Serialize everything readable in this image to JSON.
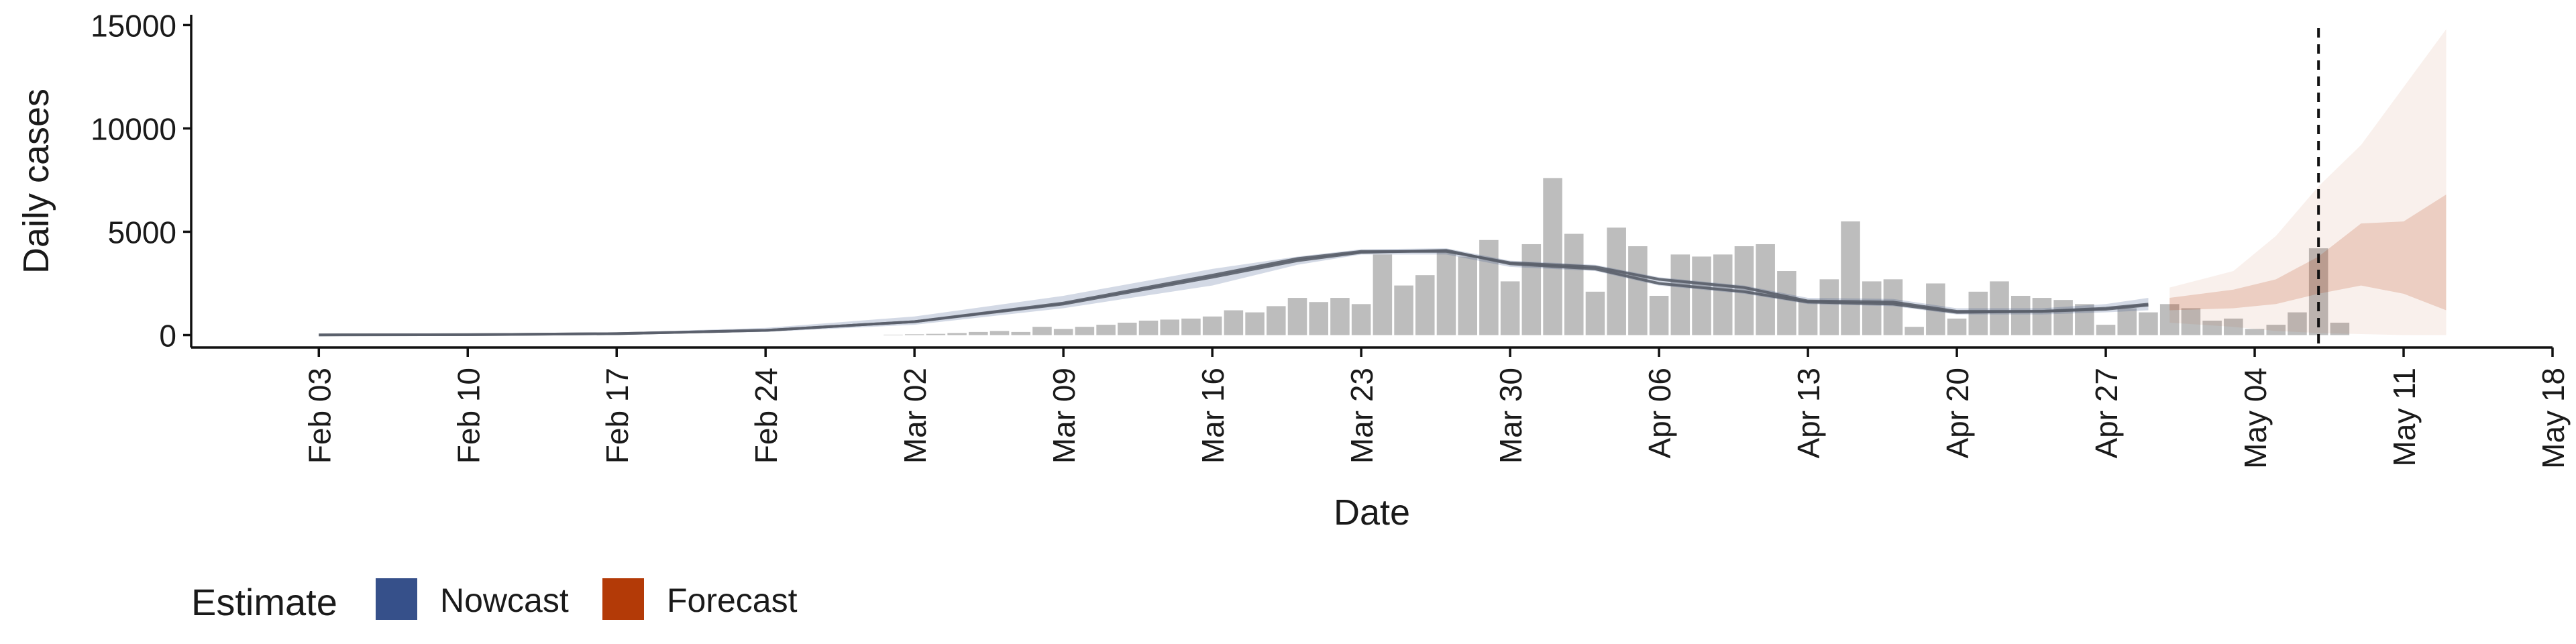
{
  "chart_data": {
    "type": "bar",
    "ylabel": "Daily cases",
    "xlabel": "Date",
    "ylim": [
      -600,
      15500
    ],
    "y_ticks": [
      0,
      5000,
      10000,
      15000
    ],
    "y_tick_labels": [
      "0",
      "5000",
      "10000",
      "15000"
    ],
    "x_range": [
      "2020-01-28",
      "2020-05-18"
    ],
    "x_ticks": [
      "2020-02-03",
      "2020-02-10",
      "2020-02-17",
      "2020-02-24",
      "2020-03-02",
      "2020-03-09",
      "2020-03-16",
      "2020-03-23",
      "2020-03-30",
      "2020-04-06",
      "2020-04-13",
      "2020-04-20",
      "2020-04-27",
      "2020-05-04",
      "2020-05-11",
      "2020-05-18"
    ],
    "x_tick_labels": [
      "Feb 03",
      "Feb 10",
      "Feb 17",
      "Feb 24",
      "Mar 02",
      "Mar 09",
      "Mar 16",
      "Mar 23",
      "Mar 30",
      "Apr 06",
      "Apr 13",
      "Apr 20",
      "Apr 27",
      "May 04",
      "May 11",
      "May 18"
    ],
    "vline_date": "2020-05-07",
    "bar_color": "#bdbdbd",
    "bars": {
      "start_date": "2020-02-29",
      "values": [
        0,
        20,
        40,
        60,
        100,
        150,
        200,
        150,
        400,
        300,
        400,
        500,
        600,
        700,
        750,
        800,
        900,
        1200,
        1100,
        1400,
        1800,
        1600,
        1800,
        1500,
        3900,
        2400,
        2900,
        4000,
        3800,
        4600,
        2600,
        4400,
        7600,
        4900,
        2100,
        5200,
        4300,
        1900,
        3900,
        3800,
        3900,
        4300,
        4400,
        3100,
        1700,
        2700,
        5500,
        2600,
        2700,
        400,
        2500,
        800,
        2100,
        2600,
        1900,
        1800,
        1700,
        1500,
        500,
        1300,
        1100,
        1500,
        1300,
        700,
        800,
        300,
        500,
        1100,
        4200,
        600
      ]
    },
    "legend": {
      "title": "Estimate",
      "position": "bottom-left",
      "items": [
        {
          "label": "Nowcast",
          "color": "#36508a"
        },
        {
          "label": "Forecast",
          "color": "#b33a07"
        }
      ]
    },
    "nowcast": {
      "color": "#36508a",
      "line_color": "#5a5f6a",
      "points": [
        {
          "x": "2020-02-03",
          "lo": 0,
          "hi": 20,
          "m1": 10,
          "m2": 10
        },
        {
          "x": "2020-02-10",
          "lo": 10,
          "hi": 40,
          "m1": 20,
          "m2": 20
        },
        {
          "x": "2020-02-17",
          "lo": 40,
          "hi": 120,
          "m1": 70,
          "m2": 70
        },
        {
          "x": "2020-02-24",
          "lo": 150,
          "hi": 350,
          "m1": 230,
          "m2": 230
        },
        {
          "x": "2020-03-02",
          "lo": 500,
          "hi": 900,
          "m1": 650,
          "m2": 650
        },
        {
          "x": "2020-03-09",
          "lo": 1300,
          "hi": 1900,
          "m1": 1500,
          "m2": 1550
        },
        {
          "x": "2020-03-16",
          "lo": 2400,
          "hi": 3200,
          "m1": 2800,
          "m2": 2900
        },
        {
          "x": "2020-03-20",
          "lo": 3400,
          "hi": 3800,
          "m1": 3600,
          "m2": 3700
        },
        {
          "x": "2020-03-23",
          "lo": 3900,
          "hi": 4150,
          "m1": 4000,
          "m2": 4050
        },
        {
          "x": "2020-03-27",
          "lo": 3900,
          "hi": 4200,
          "m1": 4100,
          "m2": 4050
        },
        {
          "x": "2020-03-30",
          "lo": 3300,
          "hi": 3600,
          "m1": 3450,
          "m2": 3500
        },
        {
          "x": "2020-04-03",
          "lo": 3100,
          "hi": 3400,
          "m1": 3200,
          "m2": 3300
        },
        {
          "x": "2020-04-06",
          "lo": 2400,
          "hi": 2800,
          "m1": 2500,
          "m2": 2700
        },
        {
          "x": "2020-04-10",
          "lo": 2000,
          "hi": 2400,
          "m1": 2100,
          "m2": 2300
        },
        {
          "x": "2020-04-13",
          "lo": 1500,
          "hi": 1800,
          "m1": 1600,
          "m2": 1650
        },
        {
          "x": "2020-04-17",
          "lo": 1400,
          "hi": 1750,
          "m1": 1500,
          "m2": 1600
        },
        {
          "x": "2020-04-20",
          "lo": 1000,
          "hi": 1300,
          "m1": 1100,
          "m2": 1150
        },
        {
          "x": "2020-04-24",
          "lo": 1000,
          "hi": 1300,
          "m1": 1150,
          "m2": 1150
        },
        {
          "x": "2020-04-27",
          "lo": 1100,
          "hi": 1500,
          "m1": 1250,
          "m2": 1300
        },
        {
          "x": "2020-04-29",
          "lo": 1200,
          "hi": 1800,
          "m1": 1450,
          "m2": 1500
        }
      ]
    },
    "forecast": {
      "color": "#b33a07",
      "points": [
        {
          "x": "2020-04-30",
          "lo50": 1200,
          "hi50": 1800,
          "lo90": 600,
          "hi90": 2300
        },
        {
          "x": "2020-05-03",
          "lo50": 1300,
          "hi50": 2200,
          "lo90": 400,
          "hi90": 3100
        },
        {
          "x": "2020-05-05",
          "lo50": 1500,
          "hi50": 2700,
          "lo90": 200,
          "hi90": 4800
        },
        {
          "x": "2020-05-07",
          "lo50": 2000,
          "hi50": 3800,
          "lo90": 100,
          "hi90": 7200
        },
        {
          "x": "2020-05-09",
          "lo50": 2400,
          "hi50": 5400,
          "lo90": 50,
          "hi90": 9200
        },
        {
          "x": "2020-05-11",
          "lo50": 2000,
          "hi50": 5500,
          "lo90": 0,
          "hi90": 12000
        },
        {
          "x": "2020-05-13",
          "lo50": 1200,
          "hi50": 6800,
          "lo90": 0,
          "hi90": 14800
        }
      ]
    }
  }
}
